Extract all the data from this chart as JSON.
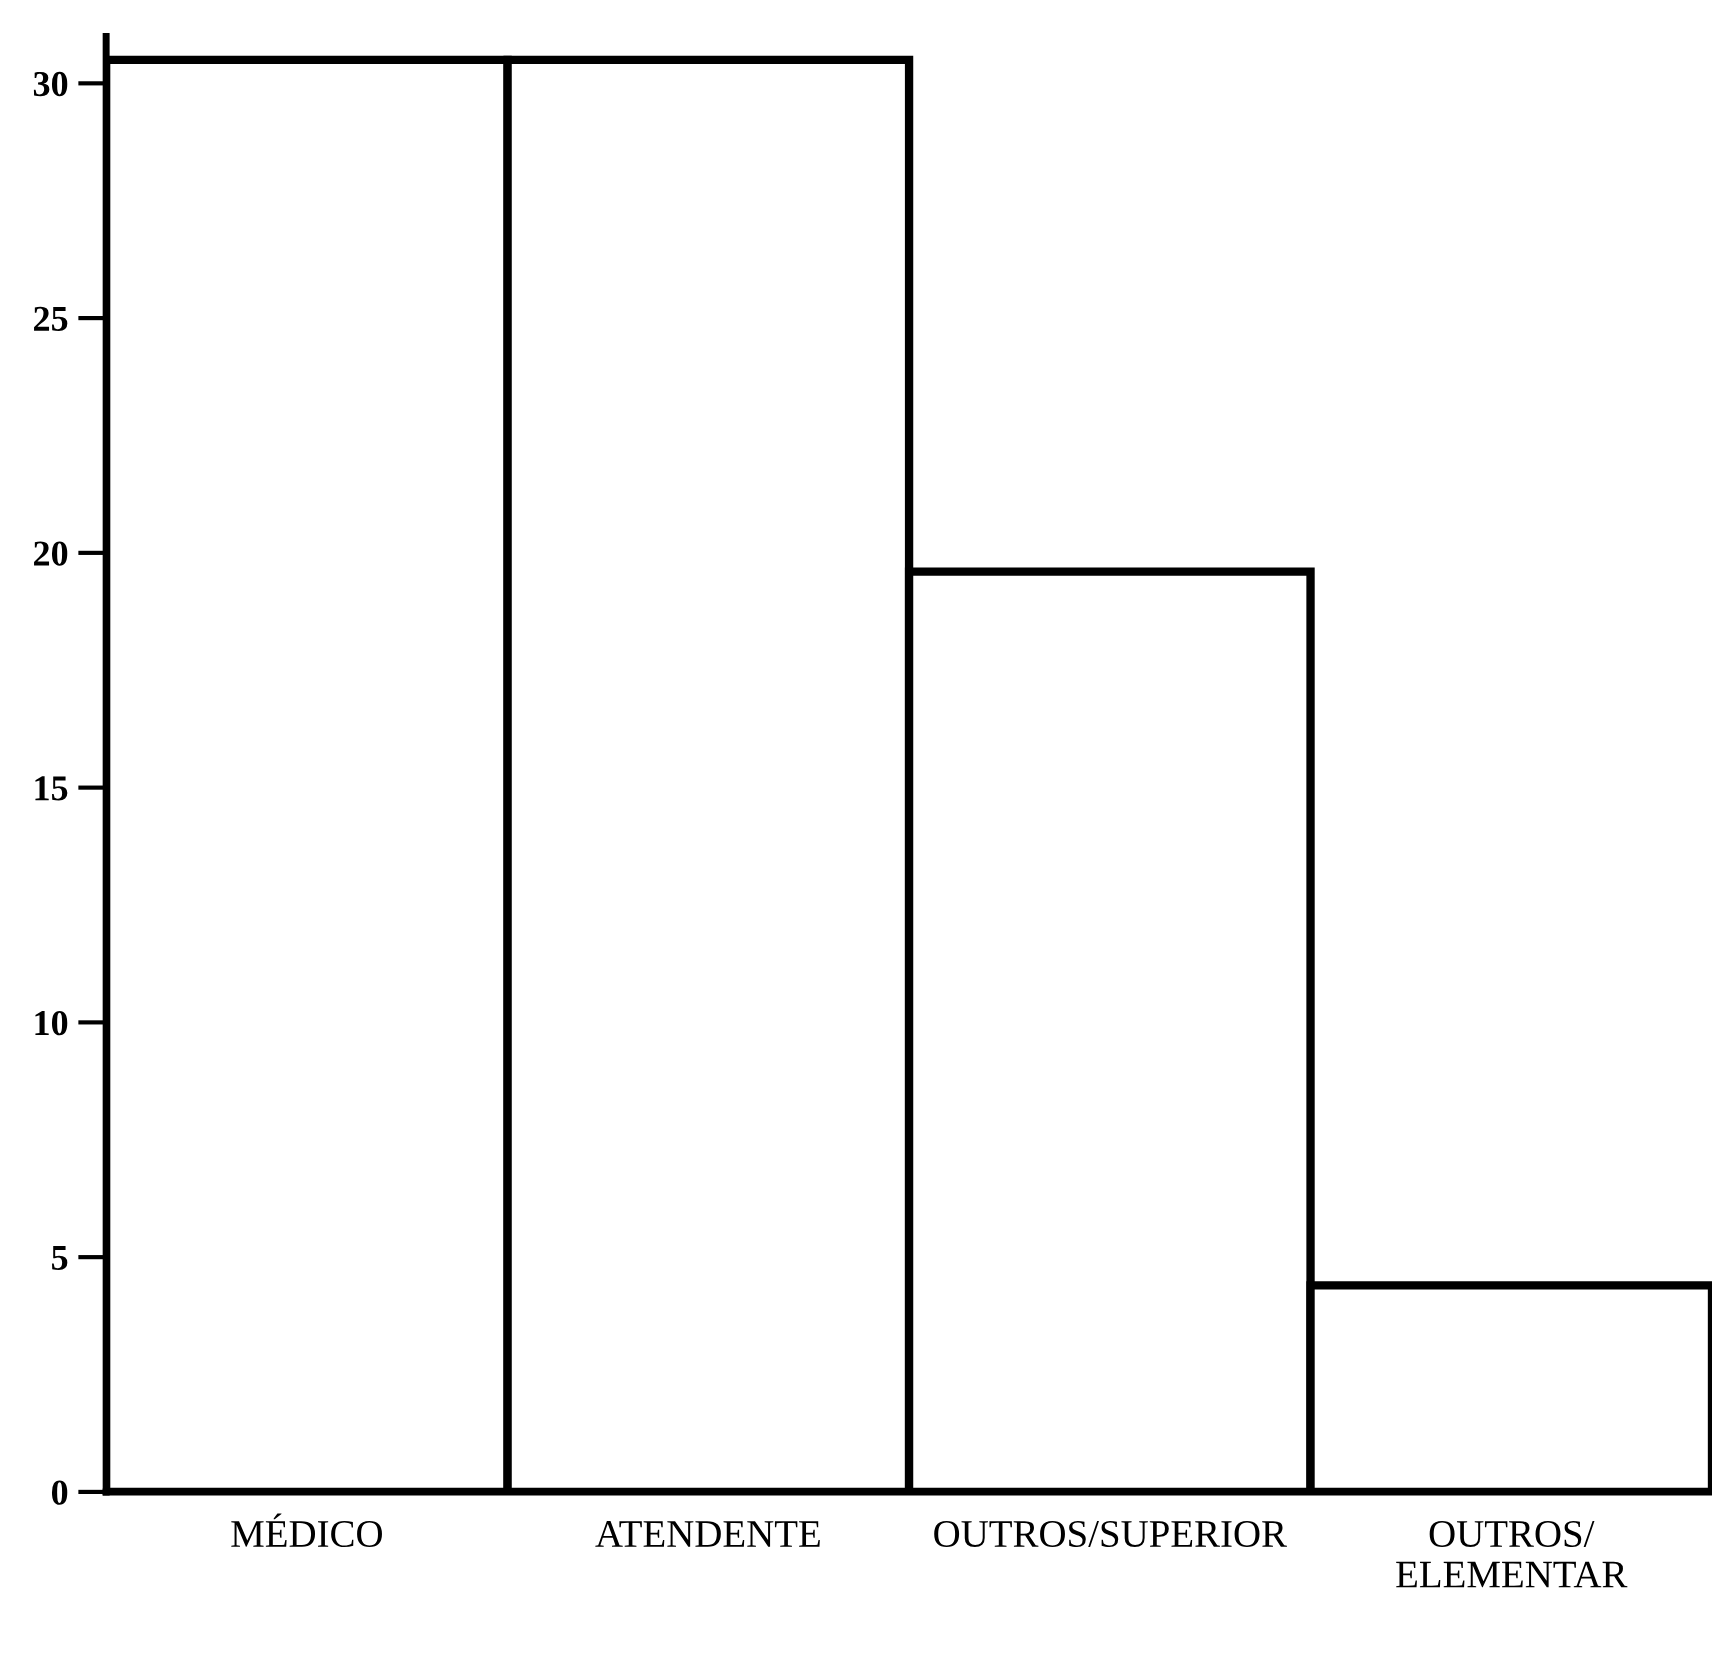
{
  "chart_data": {
    "type": "bar",
    "categories": [
      "MÉDICO",
      "ATENDENTE",
      "OUTROS/SUPERIOR",
      "OUTROS/\nELEMENTAR"
    ],
    "values": [
      30.5,
      30.5,
      19.6,
      4.4
    ],
    "color": "#ffffff",
    "ylim": [
      0,
      31
    ],
    "yticks": [
      0,
      5,
      10,
      15,
      20,
      25,
      30
    ],
    "grid": false
  }
}
